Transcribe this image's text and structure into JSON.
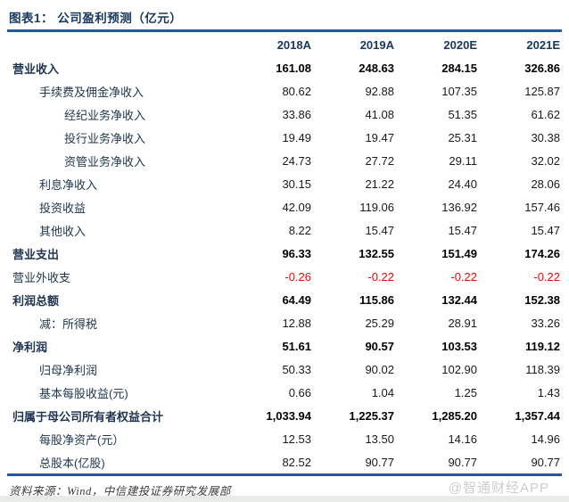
{
  "page": {
    "title": "图表1：  公司盈利预测（亿元）"
  },
  "colors": {
    "accent_line": "#1F5C99",
    "header_text": "#17375E",
    "negative_value": "#FF0000",
    "watermark_gray": "#cbcecb"
  },
  "table": {
    "columns": [
      "2018A",
      "2019A",
      "2020E",
      "2021E"
    ],
    "rows": [
      {
        "label": "营业收入",
        "indent": 0,
        "bold": true,
        "red": false,
        "values": [
          "161.08",
          "248.63",
          "284.15",
          "326.86"
        ]
      },
      {
        "label": "手续费及佣金净收入",
        "indent": 1,
        "bold": false,
        "red": false,
        "values": [
          "80.62",
          "92.88",
          "107.35",
          "125.87"
        ]
      },
      {
        "label": "经纪业务净收入",
        "indent": 2,
        "bold": false,
        "red": false,
        "values": [
          "33.86",
          "41.08",
          "51.35",
          "61.62"
        ]
      },
      {
        "label": "投行业务净收入",
        "indent": 2,
        "bold": false,
        "red": false,
        "values": [
          "19.49",
          "19.47",
          "25.31",
          "30.38"
        ]
      },
      {
        "label": "资管业务净收入",
        "indent": 2,
        "bold": false,
        "red": false,
        "values": [
          "24.73",
          "27.72",
          "29.11",
          "32.02"
        ]
      },
      {
        "label": "利息净收入",
        "indent": 1,
        "bold": false,
        "red": false,
        "values": [
          "30.15",
          "21.22",
          "24.40",
          "28.06"
        ]
      },
      {
        "label": "投资收益",
        "indent": 1,
        "bold": false,
        "red": false,
        "values": [
          "42.09",
          "119.06",
          "136.92",
          "157.46"
        ]
      },
      {
        "label": "其他收入",
        "indent": 1,
        "bold": false,
        "red": false,
        "values": [
          "8.22",
          "15.47",
          "15.47",
          "15.47"
        ]
      },
      {
        "label": "营业支出",
        "indent": 0,
        "bold": true,
        "red": false,
        "values": [
          "96.33",
          "132.55",
          "151.49",
          "174.26"
        ]
      },
      {
        "label": "营业外收支",
        "indent": 0,
        "bold": false,
        "red": true,
        "values": [
          "-0.26",
          "-0.22",
          "-0.22",
          "-0.22"
        ]
      },
      {
        "label": "利润总额",
        "indent": 0,
        "bold": true,
        "red": false,
        "values": [
          "64.49",
          "115.86",
          "132.44",
          "152.38"
        ]
      },
      {
        "label": "减：所得税",
        "indent": 1,
        "bold": false,
        "red": false,
        "values": [
          "12.88",
          "25.29",
          "28.91",
          "33.26"
        ]
      },
      {
        "label": "净利润",
        "indent": 0,
        "bold": true,
        "red": false,
        "values": [
          "51.61",
          "90.57",
          "103.53",
          "119.12"
        ]
      },
      {
        "label": "归母净利润",
        "indent": 1,
        "bold": false,
        "red": false,
        "values": [
          "50.33",
          "90.02",
          "102.90",
          "118.39"
        ]
      },
      {
        "label": "基本每股收益(元)",
        "indent": 1,
        "bold": false,
        "red": false,
        "values": [
          "0.66",
          "1.04",
          "1.25",
          "1.43"
        ]
      },
      {
        "label": "归属于母公司所有者权益合计",
        "indent": 0,
        "bold": true,
        "red": false,
        "values": [
          "1,033.94",
          "1,225.37",
          "1,285.20",
          "1,357.44"
        ]
      },
      {
        "label": "每股净资产(元）",
        "indent": 1,
        "bold": false,
        "red": false,
        "values": [
          "12.53",
          "13.50",
          "14.16",
          "14.96"
        ]
      },
      {
        "label": "总股本(亿股)",
        "indent": 1,
        "bold": false,
        "red": false,
        "values": [
          "82.52",
          "90.77",
          "90.77",
          "90.77"
        ]
      }
    ]
  },
  "footer": {
    "source": "资料来源：Wind，中信建投证券研究发展部",
    "watermark": "@智通财经APP"
  }
}
